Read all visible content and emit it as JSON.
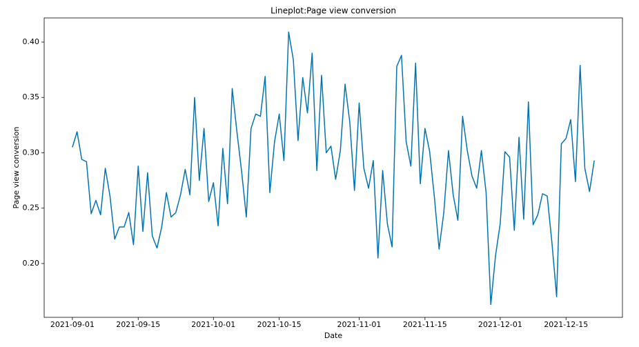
{
  "chart_data": {
    "type": "line",
    "title": "Lineplot:Page view conversion",
    "xlabel": "Date",
    "ylabel": "Page view conversion",
    "x": [
      "2021-09-01",
      "2021-09-02",
      "2021-09-03",
      "2021-09-04",
      "2021-09-05",
      "2021-09-06",
      "2021-09-07",
      "2021-09-08",
      "2021-09-09",
      "2021-09-10",
      "2021-09-11",
      "2021-09-12",
      "2021-09-13",
      "2021-09-14",
      "2021-09-15",
      "2021-09-16",
      "2021-09-17",
      "2021-09-18",
      "2021-09-19",
      "2021-09-20",
      "2021-09-21",
      "2021-09-22",
      "2021-09-23",
      "2021-09-24",
      "2021-09-25",
      "2021-09-26",
      "2021-09-27",
      "2021-09-28",
      "2021-09-29",
      "2021-09-30",
      "2021-10-01",
      "2021-10-02",
      "2021-10-03",
      "2021-10-04",
      "2021-10-05",
      "2021-10-06",
      "2021-10-07",
      "2021-10-08",
      "2021-10-09",
      "2021-10-10",
      "2021-10-11",
      "2021-10-12",
      "2021-10-13",
      "2021-10-14",
      "2021-10-15",
      "2021-10-16",
      "2021-10-17",
      "2021-10-18",
      "2021-10-19",
      "2021-10-20",
      "2021-10-21",
      "2021-10-22",
      "2021-10-23",
      "2021-10-24",
      "2021-10-25",
      "2021-10-26",
      "2021-10-27",
      "2021-10-28",
      "2021-10-29",
      "2021-10-30",
      "2021-10-31",
      "2021-11-01",
      "2021-11-02",
      "2021-11-03",
      "2021-11-04",
      "2021-11-05",
      "2021-11-06",
      "2021-11-07",
      "2021-11-08",
      "2021-11-09",
      "2021-11-10",
      "2021-11-11",
      "2021-11-12",
      "2021-11-13",
      "2021-11-14",
      "2021-11-15",
      "2021-11-16",
      "2021-11-17",
      "2021-11-18",
      "2021-11-19",
      "2021-11-20",
      "2021-11-21",
      "2021-11-22",
      "2021-11-23",
      "2021-11-24",
      "2021-11-25",
      "2021-11-26",
      "2021-11-27",
      "2021-11-28",
      "2021-11-29",
      "2021-11-30",
      "2021-12-01",
      "2021-12-02",
      "2021-12-03",
      "2021-12-04",
      "2021-12-05",
      "2021-12-06",
      "2021-12-07",
      "2021-12-08",
      "2021-12-09",
      "2021-12-10",
      "2021-12-11",
      "2021-12-12",
      "2021-12-13",
      "2021-12-14",
      "2021-12-15",
      "2021-12-16",
      "2021-12-17",
      "2021-12-18",
      "2021-12-19",
      "2021-12-20",
      "2021-12-21"
    ],
    "series": [
      {
        "name": "Page view conversion",
        "color": "#0173b2",
        "values": [
          0.305,
          0.319,
          0.294,
          0.292,
          0.245,
          0.257,
          0.244,
          0.286,
          0.261,
          0.222,
          0.233,
          0.233,
          0.246,
          0.217,
          0.288,
          0.229,
          0.282,
          0.225,
          0.214,
          0.233,
          0.264,
          0.242,
          0.246,
          0.262,
          0.285,
          0.262,
          0.35,
          0.275,
          0.322,
          0.256,
          0.273,
          0.234,
          0.304,
          0.254,
          0.358,
          0.319,
          0.283,
          0.242,
          0.322,
          0.335,
          0.333,
          0.369,
          0.264,
          0.31,
          0.335,
          0.293,
          0.409,
          0.384,
          0.311,
          0.368,
          0.336,
          0.39,
          0.284,
          0.37,
          0.3,
          0.306,
          0.276,
          0.302,
          0.362,
          0.328,
          0.266,
          0.345,
          0.286,
          0.268,
          0.293,
          0.205,
          0.284,
          0.236,
          0.215,
          0.378,
          0.388,
          0.31,
          0.288,
          0.381,
          0.272,
          0.322,
          0.301,
          0.26,
          0.213,
          0.246,
          0.302,
          0.262,
          0.239,
          0.333,
          0.302,
          0.279,
          0.268,
          0.302,
          0.264,
          0.163,
          0.207,
          0.236,
          0.301,
          0.296,
          0.23,
          0.314,
          0.24,
          0.346,
          0.235,
          0.244,
          0.263,
          0.261,
          0.219,
          0.17,
          0.308,
          0.313,
          0.33,
          0.274,
          0.379,
          0.286,
          0.265,
          0.293
        ]
      }
    ],
    "xlim": [
      "2021-08-26",
      "2021-12-27"
    ],
    "xticks": [
      "2021-09-01",
      "2021-09-15",
      "2021-10-01",
      "2021-10-15",
      "2021-11-01",
      "2021-11-15",
      "2021-12-01",
      "2021-12-15"
    ],
    "ylim": [
      0.1514,
      0.4218
    ],
    "yticks": [
      {
        "value": 0.2,
        "label": "0.20"
      },
      0.25,
      {
        "value": 0.3,
        "label": "0.30"
      },
      0.35,
      {
        "value": 0.4,
        "label": "0.40"
      }
    ]
  }
}
